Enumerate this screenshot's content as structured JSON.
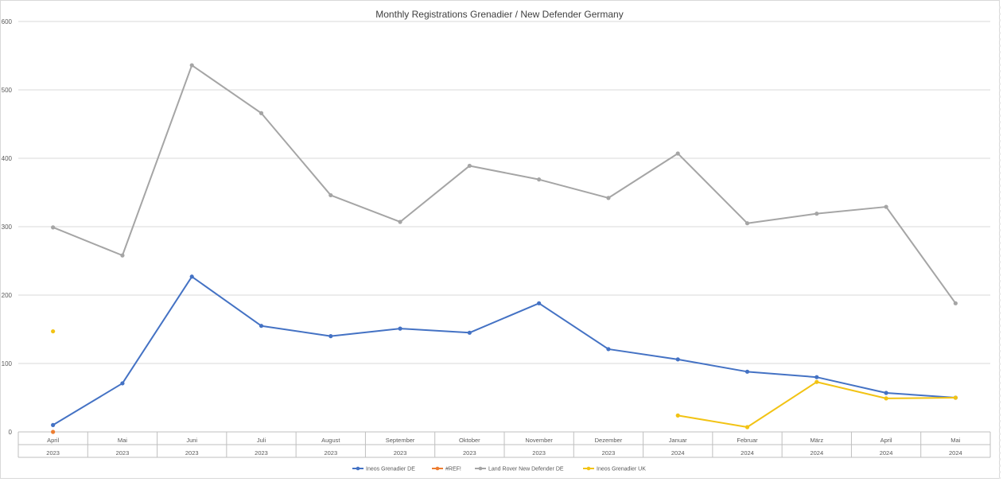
{
  "chart_data": {
    "type": "line",
    "title": "Monthly Registrations Grenadier / New Defender Germany",
    "xlabel": "",
    "ylabel": "",
    "ylim": [
      0,
      600
    ],
    "yticks": [
      0,
      100,
      200,
      300,
      400,
      500,
      600
    ],
    "grid": true,
    "legend_position": "bottom",
    "categories": [
      {
        "month": "April",
        "year": "2023"
      },
      {
        "month": "Mai",
        "year": "2023"
      },
      {
        "month": "Juni",
        "year": "2023"
      },
      {
        "month": "Juli",
        "year": "2023"
      },
      {
        "month": "August",
        "year": "2023"
      },
      {
        "month": "September",
        "year": "2023"
      },
      {
        "month": "Oktober",
        "year": "2023"
      },
      {
        "month": "November",
        "year": "2023"
      },
      {
        "month": "Dezember",
        "year": "2023"
      },
      {
        "month": "Januar",
        "year": "2024"
      },
      {
        "month": "Februar",
        "year": "2024"
      },
      {
        "month": "März",
        "year": "2024"
      },
      {
        "month": "April",
        "year": "2024"
      },
      {
        "month": "Mai",
        "year": "2024"
      }
    ],
    "series": [
      {
        "name": "Ineos Grenadier DE",
        "color": "#4472c4",
        "values": [
          10,
          71,
          227,
          155,
          140,
          151,
          145,
          188,
          121,
          106,
          88,
          80,
          57,
          50
        ]
      },
      {
        "name": "#REF!",
        "color": "#ed7d31",
        "values": [
          0,
          null,
          null,
          null,
          null,
          null,
          null,
          null,
          null,
          null,
          null,
          null,
          null,
          null
        ]
      },
      {
        "name": "Land Rover New Defender DE",
        "color": "#a5a5a5",
        "values": [
          299,
          258,
          536,
          466,
          346,
          307,
          389,
          369,
          342,
          407,
          305,
          319,
          329,
          188
        ]
      },
      {
        "name": "Ineos Grenadier UK",
        "color": "#f2c314",
        "values": [
          147,
          null,
          null,
          null,
          null,
          null,
          null,
          null,
          null,
          24,
          7,
          73,
          49,
          50
        ]
      }
    ]
  }
}
